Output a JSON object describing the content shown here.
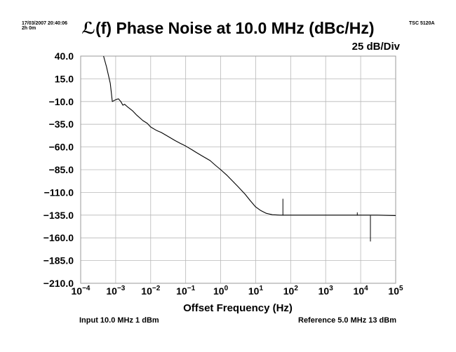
{
  "header": {
    "timestamp": "17/03/2007 20:40:06",
    "duration": "2h 0m",
    "instrument": "TSC 5120A",
    "scale": "25 dB/Div"
  },
  "footer": {
    "input": "Input 10.0 MHz 1 dBm",
    "reference": "Reference 5.0 MHz 13 dBm"
  },
  "chart_data": {
    "type": "line",
    "title": "ℒ(f) Phase Noise at 10.0 MHz (dBc/Hz)",
    "xlabel": "Offset Frequency (Hz)",
    "ylabel": "",
    "x_scale": "log",
    "xlim": [
      0.0001,
      100000
    ],
    "ylim": [
      -210,
      40
    ],
    "grid": true,
    "y_ticks": [
      "40.0",
      "15.0",
      "−10.0",
      "−35.0",
      "−60.0",
      "−85.0",
      "−110.0",
      "−135.0",
      "−160.0",
      "−185.0",
      "−210.0"
    ],
    "x_ticks": [
      {
        "base": "10",
        "exp": "−4"
      },
      {
        "base": "10",
        "exp": "−3"
      },
      {
        "base": "10",
        "exp": "−2"
      },
      {
        "base": "10",
        "exp": "−1"
      },
      {
        "base": "10",
        "exp": "0"
      },
      {
        "base": "10",
        "exp": "1"
      },
      {
        "base": "10",
        "exp": "2"
      },
      {
        "base": "10",
        "exp": "3"
      },
      {
        "base": "10",
        "exp": "4"
      },
      {
        "base": "10",
        "exp": "5"
      }
    ],
    "series": [
      {
        "points": [
          [
            0.00045,
            40
          ],
          [
            0.00055,
            28
          ],
          [
            0.0007,
            10
          ],
          [
            0.0008,
            -10
          ],
          [
            0.001,
            -8
          ],
          [
            0.0012,
            -7
          ],
          [
            0.0014,
            -10
          ],
          [
            0.0016,
            -14
          ],
          [
            0.0018,
            -13
          ],
          [
            0.0022,
            -16
          ],
          [
            0.003,
            -20
          ],
          [
            0.004,
            -25
          ],
          [
            0.006,
            -31
          ],
          [
            0.008,
            -34
          ],
          [
            0.01,
            -38
          ],
          [
            0.015,
            -42
          ],
          [
            0.02,
            -44
          ],
          [
            0.03,
            -48
          ],
          [
            0.05,
            -53
          ],
          [
            0.07,
            -56
          ],
          [
            0.1,
            -59
          ],
          [
            0.15,
            -63
          ],
          [
            0.2,
            -66
          ],
          [
            0.3,
            -70
          ],
          [
            0.5,
            -75
          ],
          [
            0.7,
            -80
          ],
          [
            1,
            -85
          ],
          [
            1.5,
            -91
          ],
          [
            2,
            -96
          ],
          [
            3,
            -103
          ],
          [
            5,
            -112
          ],
          [
            7,
            -119
          ],
          [
            10,
            -126
          ],
          [
            14,
            -130
          ],
          [
            20,
            -133
          ],
          [
            30,
            -134.5
          ],
          [
            50,
            -135
          ],
          [
            100,
            -135
          ],
          [
            300,
            -135
          ],
          [
            1000,
            -135
          ],
          [
            3000,
            -135
          ],
          [
            10000,
            -135
          ],
          [
            30000,
            -135
          ],
          [
            100000,
            -135.5
          ]
        ]
      }
    ],
    "spurs": [
      {
        "x": 60,
        "y": -117
      },
      {
        "x": 8000,
        "y": -132
      },
      {
        "x": 19000,
        "y": -164
      }
    ]
  }
}
